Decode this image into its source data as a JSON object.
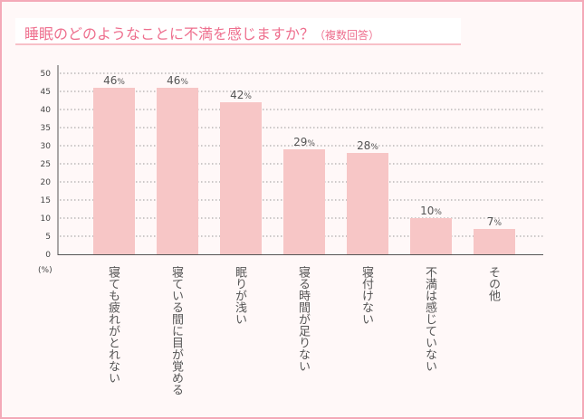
{
  "chart_data": {
    "type": "bar",
    "title": "睡眠のどのようなことに不満を感じますか？",
    "subtitle": "（複数回答）",
    "ylabel": "(%)",
    "xlabel": "",
    "ylim": [
      0,
      50
    ],
    "yticks": [
      0,
      5,
      10,
      15,
      20,
      25,
      30,
      35,
      40,
      45,
      50
    ],
    "grid": true,
    "categories": [
      "寝ても疲れがとれない",
      "寝ている間に目が覚める",
      "眠りが浅い",
      "寝る時間が足りない",
      "寝付けない",
      "不満は感じていない",
      "その他"
    ],
    "values": [
      46,
      46,
      42,
      29,
      28,
      10,
      7
    ],
    "value_suffix": "%",
    "colors": {
      "bar": "#f7c6c6",
      "title": "#ee6f8e",
      "border": "#f4a9b8"
    }
  }
}
